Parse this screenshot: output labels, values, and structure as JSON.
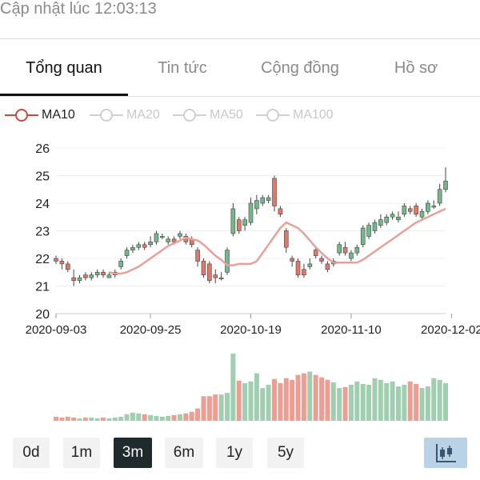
{
  "status": {
    "updated_text": "Cập nhật lúc 12:03:13"
  },
  "tabs": [
    {
      "label": "Tổng quan",
      "active": true
    },
    {
      "label": "Tin tức",
      "active": false
    },
    {
      "label": "Cộng đồng",
      "active": false
    },
    {
      "label": "Hồ sơ",
      "active": false
    }
  ],
  "legend": [
    {
      "label": "MA10",
      "active": true,
      "color": "#c94a3c"
    },
    {
      "label": "MA20",
      "active": false,
      "color": "#cfcfcf"
    },
    {
      "label": "MA50",
      "active": false,
      "color": "#cfcfcf"
    },
    {
      "label": "MA100",
      "active": false,
      "color": "#cfcfcf"
    }
  ],
  "range_buttons": [
    {
      "label": "0d",
      "active": false
    },
    {
      "label": "1m",
      "active": false
    },
    {
      "label": "3m",
      "active": true
    },
    {
      "label": "6m",
      "active": false
    },
    {
      "label": "1y",
      "active": false
    },
    {
      "label": "5y",
      "active": false
    }
  ],
  "chart_type_icon": "candlestick-chart-icon",
  "colors": {
    "up": "#73b889",
    "down": "#e0786a",
    "ma": "#e8a19a",
    "vol_up": "#9fcfb0",
    "vol_down": "#ee9d92"
  },
  "chart_data": {
    "type": "candlestick",
    "y_ticks": [
      "20",
      "21",
      "22",
      "23",
      "24",
      "25",
      "26"
    ],
    "ylim": [
      20,
      26
    ],
    "x_tick_labels": [
      "2020-09-03",
      "2020-09-25",
      "2020-10-19",
      "2020-11-10",
      "2020-12-02"
    ],
    "x_tick_index": [
      0,
      16,
      33,
      50,
      67
    ],
    "candles": [
      [
        22.0,
        21.9,
        22.1,
        21.8
      ],
      [
        21.9,
        21.8,
        22.0,
        21.6
      ],
      [
        21.8,
        21.6,
        21.9,
        21.5
      ],
      [
        21.3,
        21.2,
        21.6,
        21.0
      ],
      [
        21.2,
        21.3,
        21.4,
        21.1
      ],
      [
        21.4,
        21.3,
        21.5,
        21.2
      ],
      [
        21.3,
        21.4,
        21.5,
        21.2
      ],
      [
        21.4,
        21.5,
        21.6,
        21.3
      ],
      [
        21.5,
        21.4,
        21.6,
        21.3
      ],
      [
        21.3,
        21.4,
        21.5,
        21.3
      ],
      [
        21.4,
        21.5,
        21.6,
        21.3
      ],
      [
        21.7,
        21.9,
        22.0,
        21.6
      ],
      [
        22.1,
        22.3,
        22.4,
        22.0
      ],
      [
        22.3,
        22.4,
        22.5,
        22.2
      ],
      [
        22.4,
        22.5,
        22.6,
        22.3
      ],
      [
        22.5,
        22.4,
        22.6,
        22.3
      ],
      [
        22.5,
        22.6,
        22.8,
        22.4
      ],
      [
        22.6,
        22.9,
        23.0,
        22.5
      ],
      [
        22.8,
        22.8,
        22.9,
        22.7
      ],
      [
        22.6,
        22.7,
        22.8,
        22.5
      ],
      [
        22.7,
        22.6,
        22.8,
        22.5
      ],
      [
        22.8,
        22.9,
        23.0,
        22.7
      ],
      [
        22.8,
        22.6,
        22.9,
        22.5
      ],
      [
        22.7,
        22.5,
        22.8,
        22.4
      ],
      [
        22.3,
        21.9,
        22.4,
        21.7
      ],
      [
        21.9,
        21.4,
        22.0,
        21.3
      ],
      [
        21.8,
        21.2,
        21.9,
        21.1
      ],
      [
        21.4,
        21.3,
        21.6,
        21.1
      ],
      [
        21.3,
        21.3,
        21.5,
        21.2
      ],
      [
        21.5,
        22.3,
        22.4,
        21.4
      ],
      [
        22.9,
        23.8,
        24.0,
        22.8
      ],
      [
        23.4,
        23.0,
        23.5,
        22.9
      ],
      [
        23.2,
        23.4,
        23.5,
        23.0
      ],
      [
        23.3,
        24.0,
        24.2,
        23.2
      ],
      [
        23.8,
        24.1,
        24.3,
        23.6
      ],
      [
        24.0,
        24.2,
        24.3,
        23.9
      ],
      [
        24.1,
        24.2,
        24.3,
        24.0
      ],
      [
        24.9,
        23.9,
        25.0,
        23.7
      ],
      [
        23.8,
        23.6,
        23.9,
        23.5
      ],
      [
        23.0,
        22.4,
        23.1,
        22.2
      ],
      [
        22.0,
        21.9,
        22.1,
        21.7
      ],
      [
        21.9,
        21.4,
        22.0,
        21.3
      ],
      [
        21.6,
        21.4,
        21.8,
        21.3
      ],
      [
        21.7,
        21.8,
        22.0,
        21.6
      ],
      [
        22.3,
        22.1,
        22.4,
        22.0
      ],
      [
        22.0,
        21.9,
        22.1,
        21.8
      ],
      [
        21.8,
        21.6,
        21.9,
        21.5
      ],
      [
        21.8,
        21.9,
        22.0,
        21.7
      ],
      [
        22.2,
        22.5,
        22.6,
        22.1
      ],
      [
        22.4,
        22.2,
        22.6,
        22.1
      ],
      [
        22.0,
        22.2,
        22.3,
        21.9
      ],
      [
        22.2,
        22.4,
        22.5,
        22.1
      ],
      [
        22.5,
        23.1,
        23.2,
        22.4
      ],
      [
        22.8,
        23.2,
        23.3,
        22.7
      ],
      [
        23.0,
        23.3,
        23.4,
        22.9
      ],
      [
        23.2,
        23.4,
        23.6,
        23.1
      ],
      [
        23.3,
        23.5,
        23.6,
        23.2
      ],
      [
        23.5,
        23.6,
        23.7,
        23.4
      ],
      [
        23.4,
        23.5,
        23.7,
        23.3
      ],
      [
        23.6,
        23.9,
        24.0,
        23.5
      ],
      [
        23.8,
        23.7,
        23.9,
        23.6
      ],
      [
        23.9,
        23.6,
        24.0,
        23.5
      ],
      [
        23.5,
        23.7,
        23.8,
        23.4
      ],
      [
        23.7,
        24.0,
        24.1,
        23.6
      ],
      [
        23.9,
        23.9,
        24.1,
        23.8
      ],
      [
        24.0,
        24.5,
        24.7,
        23.9
      ],
      [
        24.5,
        24.8,
        25.3,
        24.4
      ]
    ],
    "ma10": [
      null,
      null,
      null,
      null,
      null,
      null,
      null,
      null,
      null,
      21.5,
      21.45,
      21.45,
      21.5,
      21.6,
      21.7,
      21.85,
      22.0,
      22.15,
      22.3,
      22.45,
      22.55,
      22.65,
      22.75,
      22.7,
      22.65,
      22.5,
      22.3,
      22.1,
      21.95,
      21.75,
      21.75,
      21.8,
      21.8,
      21.8,
      21.9,
      22.2,
      22.5,
      22.8,
      23.1,
      23.3,
      23.2,
      23.1,
      22.9,
      22.65,
      22.4,
      22.2,
      22.0,
      21.85,
      21.85,
      21.85,
      21.85,
      21.85,
      21.95,
      22.1,
      22.25,
      22.4,
      22.55,
      22.7,
      22.85,
      23.0,
      23.15,
      23.3,
      23.4,
      23.5,
      23.6,
      23.7,
      23.8
    ],
    "volume": [
      5,
      4,
      5,
      4,
      3,
      4,
      4,
      3,
      4,
      3,
      4,
      5,
      8,
      10,
      9,
      8,
      7,
      6,
      5,
      6,
      7,
      8,
      9,
      11,
      15,
      30,
      30,
      32,
      32,
      34,
      82,
      49,
      46,
      48,
      58,
      40,
      44,
      51,
      46,
      52,
      50,
      56,
      58,
      60,
      56,
      53,
      50,
      47,
      40,
      41,
      44,
      48,
      45,
      44,
      52,
      50,
      46,
      48,
      42,
      44,
      48,
      45,
      40,
      42,
      52,
      50,
      46
    ]
  }
}
